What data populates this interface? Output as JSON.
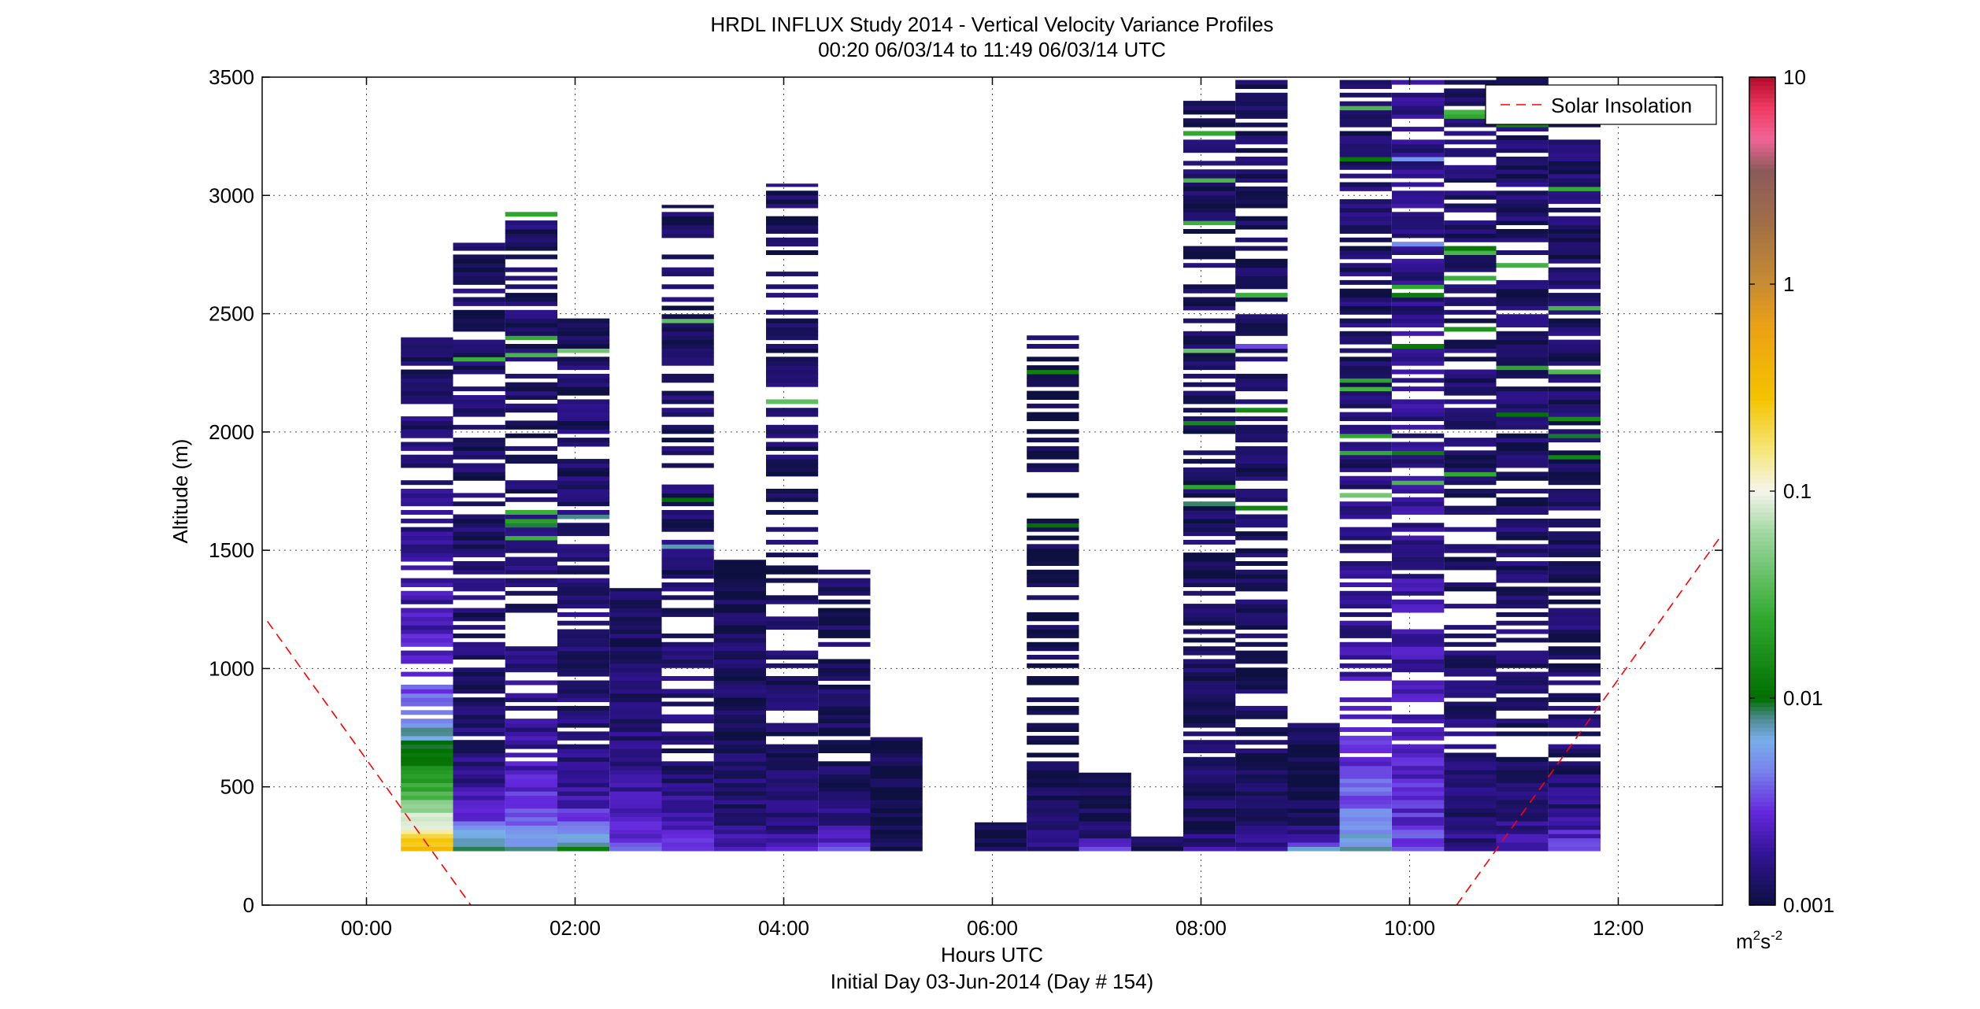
{
  "chart_data": {
    "type": "heatmap",
    "title": "HRDL INFLUX Study 2014 - Vertical Velocity Variance Profiles",
    "subtitle": "00:20 06/03/14 to 11:49 06/03/14  UTC",
    "xlabel": "Hours UTC",
    "xlabel2": "Initial Day 03-Jun-2014 (Day # 154)",
    "ylabel": "Altitude (m)",
    "xlim": [
      -1,
      13
    ],
    "ylim": [
      0,
      3500
    ],
    "x_ticks": [
      0,
      2,
      4,
      6,
      8,
      10,
      12
    ],
    "x_tick_labels": [
      "00:00",
      "02:00",
      "04:00",
      "06:00",
      "08:00",
      "10:00",
      "12:00"
    ],
    "y_ticks": [
      0,
      500,
      1000,
      1500,
      2000,
      2500,
      3000,
      3500
    ],
    "y_tick_labels": [
      "0",
      "500",
      "1000",
      "1500",
      "2000",
      "2500",
      "3000",
      "3500"
    ],
    "grid": true,
    "legend": {
      "position": "top-right",
      "entries": [
        "Solar Insolation"
      ]
    },
    "colorbar": {
      "scale": "log",
      "min": 0.001,
      "max": 10,
      "tick_labels": [
        "0.001",
        "0.01",
        "0.1",
        "1",
        "10"
      ],
      "tick_values": [
        0.001,
        0.01,
        0.1,
        1,
        10
      ],
      "unit_label": "m",
      "unit_sup1": "2",
      "unit_mid": "s",
      "unit_sup2": "-2"
    },
    "solar_insolation": {
      "color": "#ff0000",
      "style": "dashed",
      "segments": [
        {
          "x": [
            -0.95,
            1.0
          ],
          "y": [
            1200,
            0
          ]
        },
        {
          "x": [
            10.45,
            13.0
          ],
          "y": [
            0,
            1570
          ]
        }
      ]
    },
    "profiles": [
      {
        "t": 0.58,
        "dt": 0.5,
        "bottom": 230,
        "top": 2400,
        "base": 0.0012,
        "lowmax": 0.35,
        "dec": 400,
        "gap": 0.25,
        "seed": 1
      },
      {
        "t": 1.08,
        "dt": 0.5,
        "bottom": 230,
        "top": 2800,
        "base": 0.0012,
        "lowmax": 0.01,
        "dec": 150,
        "gap": 0.35,
        "seed": 2
      },
      {
        "t": 1.58,
        "dt": 0.5,
        "bottom": 230,
        "top": 2990,
        "base": 0.0012,
        "lowmax": 0.006,
        "dec": 300,
        "gap": 0.3,
        "seed": 3
      },
      {
        "t": 2.08,
        "dt": 0.5,
        "bottom": 230,
        "top": 2480,
        "base": 0.0012,
        "lowmax": 0.01,
        "dec": 150,
        "gap": 0.2,
        "seed": 4
      },
      {
        "t": 2.58,
        "dt": 0.5,
        "bottom": 230,
        "top": 1340,
        "base": 0.0011,
        "lowmax": 0.003,
        "dec": 300,
        "gap": 0.0,
        "seed": 5
      },
      {
        "t": 3.08,
        "dt": 0.5,
        "bottom": 230,
        "top": 2960,
        "base": 0.0012,
        "lowmax": 0.003,
        "dec": 150,
        "gap": 0.35,
        "seed": 6
      },
      {
        "t": 3.58,
        "dt": 0.5,
        "bottom": 230,
        "top": 1460,
        "base": 0.0011,
        "lowmax": 0.002,
        "dec": 150,
        "gap": 0.0,
        "seed": 7
      },
      {
        "t": 4.08,
        "dt": 0.5,
        "bottom": 230,
        "top": 3050,
        "base": 0.0011,
        "lowmax": 0.002,
        "dec": 150,
        "gap": 0.45,
        "seed": 8
      },
      {
        "t": 4.58,
        "dt": 0.5,
        "bottom": 230,
        "top": 1430,
        "base": 0.0011,
        "lowmax": 0.003,
        "dec": 100,
        "gap": 0.2,
        "seed": 9
      },
      {
        "t": 5.08,
        "dt": 0.5,
        "bottom": 230,
        "top": 710,
        "base": 0.001,
        "lowmax": 0.001,
        "dec": 100,
        "gap": 0.0,
        "seed": 10
      },
      {
        "t": 6.08,
        "dt": 0.5,
        "bottom": 230,
        "top": 350,
        "base": 0.001,
        "lowmax": 0.001,
        "dec": 100,
        "gap": 0.0,
        "seed": 11
      },
      {
        "t": 6.58,
        "dt": 0.5,
        "bottom": 230,
        "top": 2420,
        "base": 0.001,
        "lowmax": 0.0015,
        "dec": 100,
        "gap": 0.5,
        "seed": 12
      },
      {
        "t": 7.08,
        "dt": 0.5,
        "bottom": 230,
        "top": 560,
        "base": 0.001,
        "lowmax": 0.003,
        "dec": 50,
        "gap": 0.0,
        "seed": 13
      },
      {
        "t": 7.58,
        "dt": 0.5,
        "bottom": 230,
        "top": 290,
        "base": 0.001,
        "lowmax": 0.001,
        "dec": 50,
        "gap": 0.0,
        "seed": 14
      },
      {
        "t": 8.08,
        "dt": 0.5,
        "bottom": 230,
        "top": 3400,
        "base": 0.0011,
        "lowmax": 0.002,
        "dec": 50,
        "gap": 0.25,
        "seed": 15
      },
      {
        "t": 8.58,
        "dt": 0.5,
        "bottom": 230,
        "top": 3500,
        "base": 0.0011,
        "lowmax": 0.002,
        "dec": 50,
        "gap": 0.3,
        "seed": 16
      },
      {
        "t": 9.08,
        "dt": 0.5,
        "bottom": 230,
        "top": 770,
        "base": 0.001,
        "lowmax": 0.005,
        "dec": 50,
        "gap": 0.0,
        "seed": 17
      },
      {
        "t": 9.58,
        "dt": 0.5,
        "bottom": 230,
        "top": 3500,
        "base": 0.0012,
        "lowmax": 0.006,
        "dec": 550,
        "gap": 0.3,
        "seed": 18
      },
      {
        "t": 10.08,
        "dt": 0.5,
        "bottom": 230,
        "top": 3500,
        "base": 0.0014,
        "lowmax": 0.003,
        "dec": 800,
        "gap": 0.25,
        "seed": 19
      },
      {
        "t": 10.58,
        "dt": 0.5,
        "bottom": 230,
        "top": 3500,
        "base": 0.0012,
        "lowmax": 0.0015,
        "dec": 200,
        "gap": 0.3,
        "seed": 20
      },
      {
        "t": 11.08,
        "dt": 0.5,
        "bottom": 230,
        "top": 3500,
        "base": 0.0012,
        "lowmax": 0.002,
        "dec": 100,
        "gap": 0.3,
        "seed": 21
      },
      {
        "t": 11.58,
        "dt": 0.5,
        "bottom": 230,
        "top": 3300,
        "base": 0.0012,
        "lowmax": 0.004,
        "dec": 100,
        "gap": 0.3,
        "seed": 22
      }
    ]
  }
}
